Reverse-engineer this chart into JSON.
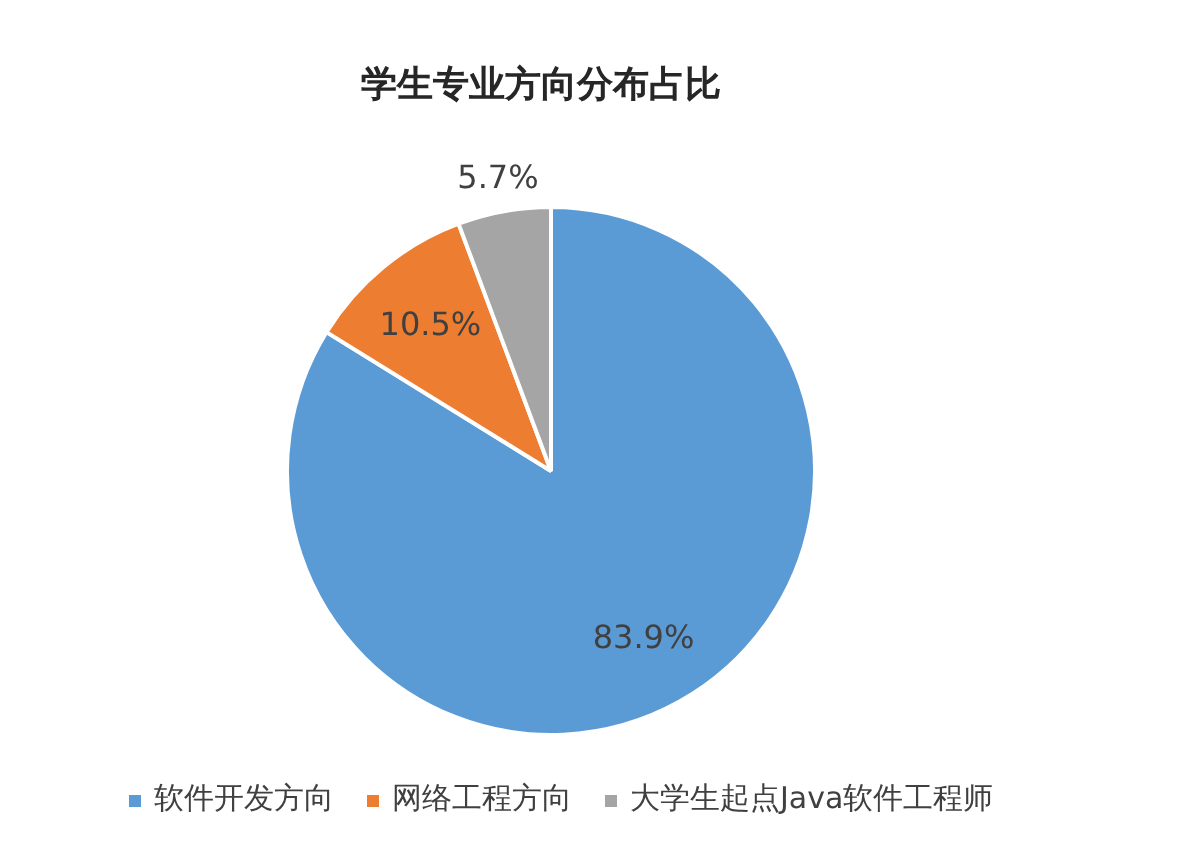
{
  "chart_data": {
    "type": "pie",
    "title": "学生专业方向分布占比",
    "categories": [
      "软件开发方向",
      "网络工程方向",
      "大学生起点Java软件工程师"
    ],
    "values": [
      83.9,
      10.5,
      5.7
    ],
    "colors": [
      "#5b9bd5",
      "#ed7d31",
      "#a5a5a5"
    ],
    "value_labels": [
      "83.9%",
      "10.5%",
      "5.7%"
    ],
    "legend": "bottom"
  }
}
